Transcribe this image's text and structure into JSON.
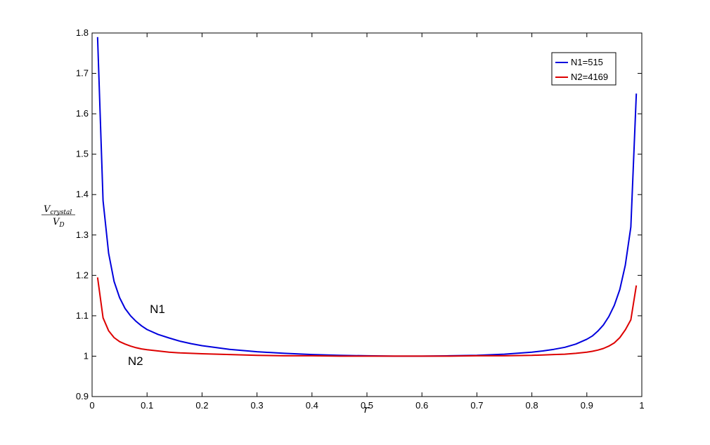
{
  "chart_data": {
    "type": "line",
    "xlabel": "r",
    "ylabel": {
      "numerator": "V",
      "numerator_sub": "crystal",
      "denominator": "V",
      "denominator_sub": "D"
    },
    "xlim": [
      0,
      1
    ],
    "ylim": [
      0.9,
      1.8
    ],
    "x_ticks": [
      "0",
      "0.1",
      "0.2",
      "0.3",
      "0.4",
      "0.5",
      "0.6",
      "0.7",
      "0.8",
      "0.9",
      "1"
    ],
    "y_ticks": [
      "0.9",
      "1",
      "1.1",
      "1.2",
      "1.3",
      "1.4",
      "1.5",
      "1.6",
      "1.7",
      "1.8"
    ],
    "grid": false,
    "legend_position": "top-right",
    "series": [
      {
        "name": "N1=515",
        "color": "#0000dd",
        "x": [
          0.01,
          0.02,
          0.03,
          0.04,
          0.05,
          0.06,
          0.07,
          0.08,
          0.09,
          0.1,
          0.12,
          0.14,
          0.16,
          0.18,
          0.2,
          0.25,
          0.3,
          0.35,
          0.4,
          0.45,
          0.5,
          0.55,
          0.6,
          0.65,
          0.7,
          0.75,
          0.8,
          0.82,
          0.84,
          0.86,
          0.88,
          0.9,
          0.91,
          0.92,
          0.93,
          0.94,
          0.95,
          0.96,
          0.97,
          0.98,
          0.99
        ],
        "y": [
          1.79,
          1.385,
          1.255,
          1.185,
          1.145,
          1.118,
          1.1,
          1.086,
          1.075,
          1.066,
          1.054,
          1.045,
          1.037,
          1.031,
          1.026,
          1.017,
          1.011,
          1.007,
          1.004,
          1.002,
          1.001,
          1.0,
          1.0,
          1.001,
          1.002,
          1.005,
          1.01,
          1.013,
          1.017,
          1.022,
          1.03,
          1.042,
          1.05,
          1.062,
          1.077,
          1.098,
          1.126,
          1.165,
          1.225,
          1.32,
          1.65
        ]
      },
      {
        "name": "N2=4169",
        "color": "#dd0000",
        "x": [
          0.01,
          0.02,
          0.03,
          0.04,
          0.05,
          0.06,
          0.07,
          0.08,
          0.09,
          0.1,
          0.12,
          0.14,
          0.16,
          0.18,
          0.2,
          0.25,
          0.3,
          0.35,
          0.4,
          0.45,
          0.5,
          0.55,
          0.6,
          0.65,
          0.7,
          0.75,
          0.8,
          0.82,
          0.84,
          0.86,
          0.88,
          0.9,
          0.91,
          0.92,
          0.93,
          0.94,
          0.95,
          0.96,
          0.97,
          0.98,
          0.99
        ],
        "y": [
          1.195,
          1.095,
          1.063,
          1.046,
          1.036,
          1.03,
          1.025,
          1.021,
          1.018,
          1.016,
          1.013,
          1.01,
          1.008,
          1.007,
          1.006,
          1.004,
          1.002,
          1.001,
          1.001,
          1.0,
          1.0,
          1.0,
          1.0,
          1.0,
          1.001,
          1.001,
          1.002,
          1.003,
          1.004,
          1.005,
          1.007,
          1.01,
          1.012,
          1.015,
          1.019,
          1.025,
          1.033,
          1.046,
          1.065,
          1.09,
          1.175
        ]
      }
    ],
    "annotations": [
      {
        "text": "N1",
        "x": 0.105,
        "y": 1.107
      },
      {
        "text": "N2",
        "x": 0.065,
        "y": 0.978
      }
    ]
  }
}
